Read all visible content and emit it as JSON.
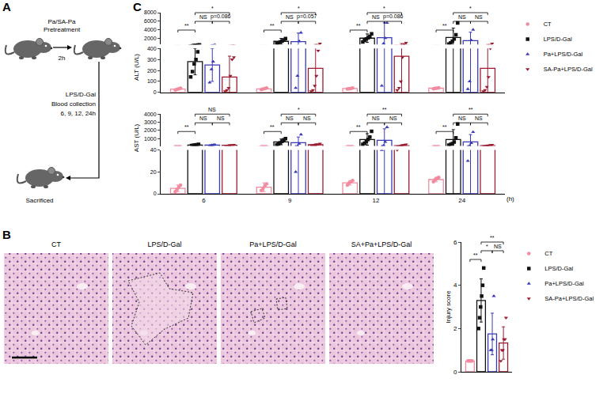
{
  "panel_labels": [
    "A",
    "B",
    "C"
  ],
  "diagram": {
    "pretreatment": [
      "Pa/SA-Pa",
      "Pretreatment"
    ],
    "interval": "2h",
    "challenge": [
      "LPS/D-Gal",
      "Blood collection",
      "6, 9, 12, 24h"
    ],
    "end": "Sacrificed"
  },
  "histology": {
    "labels": [
      "CT",
      "LPS/D-Gal",
      "Pa+LPS/D-Gal",
      "SA+Pa+LPS/D-Gal"
    ]
  },
  "chart_data": [
    {
      "type": "bar",
      "y_label": "ALT (U/L)",
      "categories": [
        "6",
        "9",
        "12",
        "24"
      ],
      "tick_labels": "y",
      "legend": "upper right",
      "y_segments": [
        {
          "ylim": [
            0,
            400
          ],
          "yticks": [
            0,
            100,
            200,
            300,
            400
          ]
        },
        {
          "ylim": [
            500,
            8000
          ],
          "yticks": [
            2000,
            4000,
            6000,
            8000
          ]
        }
      ],
      "series": [
        {
          "name": "CT",
          "color": "#f28ba0",
          "marker": "circle",
          "values": [
            30,
            32,
            35,
            38
          ],
          "errors": [
            8,
            8,
            6,
            7
          ],
          "points": [
            [
              22,
              28,
              33,
              38
            ],
            [
              25,
              30,
              35,
              40
            ],
            [
              30,
              33,
              36,
              40
            ],
            [
              32,
              36,
              38,
              42
            ]
          ]
        },
        {
          "name": "LPS/D-Gal",
          "color": "#111111",
          "marker": "square",
          "values": [
            280,
            1250,
            2000,
            2170
          ],
          "errors": [
            120,
            700,
            1000,
            2200
          ],
          "points": [
            [
              140,
              190,
              260,
              300,
              370,
              420
            ],
            [
              700,
              900,
              1100,
              1300,
              1600,
              1900
            ],
            [
              1100,
              1500,
              1800,
              2100,
              2400,
              3000
            ],
            [
              600,
              900,
              1300,
              1800,
              2800,
              5600
            ]
          ]
        },
        {
          "name": "Pa+LPS/D-Gal",
          "color": "#3a3ab8",
          "marker": "triangle-up",
          "values": [
            250,
            1200,
            2100,
            1400
          ],
          "errors": [
            150,
            2000,
            3500,
            2000
          ],
          "points": [
            [
              90,
              210,
              280,
              420
            ],
            [
              40,
              150,
              1300,
              3300
            ],
            [
              60,
              700,
              2000,
              5600
            ],
            [
              30,
              100,
              1500,
              4000
            ]
          ]
        },
        {
          "name": "SA-Pa+LPS/D-Gal",
          "color": "#9b1b30",
          "marker": "triangle-down",
          "values": [
            140,
            220,
            330,
            220
          ],
          "errors": [
            190,
            300,
            400,
            280
          ],
          "points": [
            [
              10,
              20,
              40,
              150,
              300,
              320
            ],
            [
              10,
              20,
              60,
              150,
              380,
              700
            ],
            [
              20,
              40,
              100,
              320,
              600,
              900
            ],
            [
              10,
              20,
              50,
              140,
              400,
              700
            ]
          ]
        }
      ],
      "brackets": [
        {
          "group": 0,
          "pair": [
            0,
            1
          ],
          "label": "**"
        },
        {
          "group": 0,
          "pair": [
            1,
            2
          ],
          "label": "NS"
        },
        {
          "group": 0,
          "pair": [
            2,
            3
          ],
          "label": "p=0.086"
        },
        {
          "group": 0,
          "pair": [
            1,
            3
          ],
          "label": "*"
        },
        {
          "group": 1,
          "pair": [
            0,
            1
          ],
          "label": "**"
        },
        {
          "group": 1,
          "pair": [
            1,
            2
          ],
          "label": "NS"
        },
        {
          "group": 1,
          "pair": [
            2,
            3
          ],
          "label": "p=0.057"
        },
        {
          "group": 1,
          "pair": [
            1,
            3
          ],
          "label": "*"
        },
        {
          "group": 2,
          "pair": [
            0,
            1
          ],
          "label": "**"
        },
        {
          "group": 2,
          "pair": [
            1,
            2
          ],
          "label": "NS"
        },
        {
          "group": 2,
          "pair": [
            2,
            3
          ],
          "label": "p=0.086"
        },
        {
          "group": 2,
          "pair": [
            1,
            3
          ],
          "label": "*"
        },
        {
          "group": 3,
          "pair": [
            0,
            1
          ],
          "label": "**"
        },
        {
          "group": 3,
          "pair": [
            1,
            2
          ],
          "label": "NS"
        },
        {
          "group": 3,
          "pair": [
            2,
            3
          ],
          "label": "NS"
        },
        {
          "group": 3,
          "pair": [
            1,
            3
          ],
          "label": "*"
        }
      ]
    },
    {
      "type": "bar",
      "y_label": "AST (U/L)",
      "x_label": "(h)",
      "categories": [
        "6",
        "9",
        "12",
        "24"
      ],
      "y_segments": [
        {
          "ylim": [
            0,
            40
          ],
          "yticks": [
            0,
            20,
            40
          ]
        },
        {
          "ylim": [
            100,
            4000
          ],
          "yticks": [
            1000,
            2000,
            3000,
            4000
          ]
        }
      ],
      "series": [
        {
          "name": "CT",
          "color": "#f28ba0",
          "marker": "circle",
          "values": [
            5,
            6,
            10,
            13
          ],
          "errors": [
            3,
            4,
            2,
            2
          ],
          "points": [
            [
              2,
              4,
              6,
              8
            ],
            [
              3,
              5,
              7,
              9
            ],
            [
              8,
              10,
              11,
              12
            ],
            [
              11,
              13,
              14,
              15
            ]
          ]
        },
        {
          "name": "LPS/D-Gal",
          "color": "#111111",
          "marker": "square",
          "values": [
            220,
            600,
            900,
            900
          ],
          "errors": [
            60,
            350,
            700,
            1200
          ],
          "points": [
            [
              150,
              180,
              220,
              250,
              300
            ],
            [
              250,
              350,
              500,
              650,
              850,
              1000
            ],
            [
              300,
              450,
              650,
              900,
              1200,
              1900
            ],
            [
              200,
              300,
              400,
              600,
              1100,
              2800
            ]
          ]
        },
        {
          "name": "Pa+LPS/D-Gal",
          "color": "#3a3ab8",
          "marker": "triangle-up",
          "values": [
            200,
            500,
            800,
            600
          ],
          "errors": [
            60,
            700,
            1400,
            900
          ],
          "points": [
            [
              140,
              180,
              220,
              260
            ],
            [
              20,
              100,
              380,
              1500
            ],
            [
              40,
              160,
              600,
              2400
            ],
            [
              30,
              120,
              450,
              1800
            ]
          ]
        },
        {
          "name": "SA-Pa+LPS/D-Gal",
          "color": "#9b1b30",
          "marker": "triangle-down",
          "values": [
            180,
            250,
            150,
            150
          ],
          "errors": [
            50,
            100,
            80,
            60
          ],
          "points": [
            [
              120,
              150,
              170,
              190,
              220,
              230
            ],
            [
              150,
              180,
              220,
              260,
              320,
              370
            ],
            [
              40,
              60,
              100,
              180,
              240,
              280
            ],
            [
              60,
              90,
              130,
              170,
              210,
              240
            ]
          ]
        }
      ],
      "brackets": [
        {
          "group": 0,
          "pair": [
            0,
            1
          ],
          "label": "**"
        },
        {
          "group": 0,
          "pair": [
            1,
            2
          ],
          "label": "NS"
        },
        {
          "group": 0,
          "pair": [
            2,
            3
          ],
          "label": "NS"
        },
        {
          "group": 0,
          "pair": [
            1,
            3
          ],
          "label": "NS"
        },
        {
          "group": 1,
          "pair": [
            0,
            1
          ],
          "label": "**"
        },
        {
          "group": 1,
          "pair": [
            1,
            2
          ],
          "label": "NS"
        },
        {
          "group": 1,
          "pair": [
            2,
            3
          ],
          "label": "NS"
        },
        {
          "group": 1,
          "pair": [
            1,
            3
          ],
          "label": "*"
        },
        {
          "group": 2,
          "pair": [
            0,
            1
          ],
          "label": "**"
        },
        {
          "group": 2,
          "pair": [
            1,
            2
          ],
          "label": "NS"
        },
        {
          "group": 2,
          "pair": [
            2,
            3
          ],
          "label": "NS"
        },
        {
          "group": 2,
          "pair": [
            1,
            3
          ],
          "label": "**"
        },
        {
          "group": 3,
          "pair": [
            0,
            1
          ],
          "label": "**"
        },
        {
          "group": 3,
          "pair": [
            1,
            2
          ],
          "label": "NS"
        },
        {
          "group": 3,
          "pair": [
            2,
            3
          ],
          "label": "NS"
        },
        {
          "group": 3,
          "pair": [
            1,
            3
          ],
          "label": "**"
        }
      ]
    },
    {
      "type": "bar",
      "y_label": "Injury score",
      "tick_labels": "y",
      "legend": "upper right",
      "ylim": [
        0,
        6
      ],
      "yticks": [
        0,
        2,
        4,
        6
      ],
      "series": [
        {
          "name": "CT",
          "color": "#f28ba0",
          "marker": "circle",
          "values": [
            0.5
          ],
          "errors": [
            0
          ],
          "points": [
            [
              0.5,
              0.5,
              0.5,
              0.5,
              0.5
            ]
          ]
        },
        {
          "name": "LPS/D-Gal",
          "color": "#111111",
          "marker": "square",
          "values": [
            3.3
          ],
          "errors": [
            1.0
          ],
          "points": [
            [
              2,
              2.5,
              3,
              3.5,
              4,
              4.8
            ]
          ]
        },
        {
          "name": "Pa+LPS/D-Gal",
          "color": "#3a3ab8",
          "marker": "triangle-up",
          "values": [
            1.75
          ],
          "errors": [
            0.96
          ],
          "points": [
            [
              1,
              1,
              1.5,
              3.5
            ]
          ]
        },
        {
          "name": "SA-Pa+LPS/D-Gal",
          "color": "#9b1b30",
          "marker": "triangle-down",
          "values": [
            1.33
          ],
          "errors": [
            0.75
          ],
          "points": [
            [
              0.5,
              1,
              1,
              1.5,
              1.5,
              2.5
            ]
          ]
        }
      ],
      "brackets": [
        {
          "group": 0,
          "pair": [
            0,
            1
          ],
          "label": "**"
        },
        {
          "group": 0,
          "pair": [
            1,
            2
          ],
          "label": "*"
        },
        {
          "group": 0,
          "pair": [
            2,
            3
          ],
          "label": "NS"
        },
        {
          "group": 0,
          "pair": [
            1,
            3
          ],
          "label": "**"
        }
      ]
    }
  ]
}
